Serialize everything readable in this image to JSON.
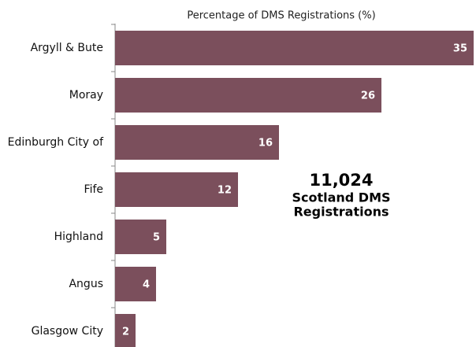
{
  "chart_data": {
    "type": "barh",
    "title": "Percentage of DMS Registrations (%)",
    "categories": [
      "Argyll & Bute",
      "Moray",
      "Edinburgh City of",
      "Fife",
      "Highland",
      "Angus",
      "Glasgow City"
    ],
    "values": [
      35,
      26,
      16,
      12,
      5,
      4,
      2
    ],
    "color": "#7b4f5c",
    "annotation": [
      "11,024",
      "Scotland DMS",
      "Registrations"
    ]
  }
}
